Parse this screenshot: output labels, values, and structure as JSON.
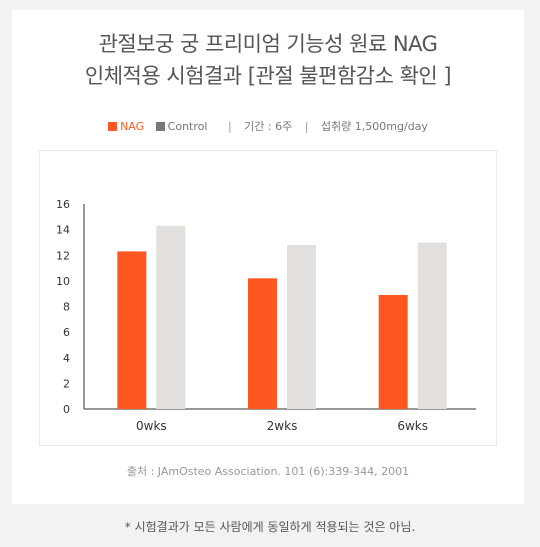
{
  "title": {
    "line1": "관절보궁 궁 프리미엄 기능성 원료 NAG",
    "line2": "인체적용 시험결과 [관절 불편함감소 확인 ]"
  },
  "legend": {
    "nag": "NAG",
    "control": "Control",
    "period": "기간 : 6주",
    "dose": "섭취량 1,500mg/day"
  },
  "colors": {
    "nag": "#ff5722",
    "control": "#e2dfdc"
  },
  "chart_data": {
    "type": "bar",
    "categories": [
      "0wks",
      "2wks",
      "6wks"
    ],
    "series": [
      {
        "name": "NAG",
        "values": [
          12.3,
          10.2,
          8.9
        ]
      },
      {
        "name": "Control",
        "values": [
          14.3,
          12.8,
          13.0
        ]
      }
    ],
    "ylim": [
      0,
      16
    ],
    "yticks": [
      0,
      2,
      4,
      6,
      8,
      10,
      12,
      14,
      16
    ],
    "grid": false,
    "legend_position": "top"
  },
  "source": "출처 : JAmOsteo Association. 101 (6):339-344, 2001",
  "footnote": "* 시험결과가 모든 사람에게 동일하게 적용되는 것은 아님."
}
